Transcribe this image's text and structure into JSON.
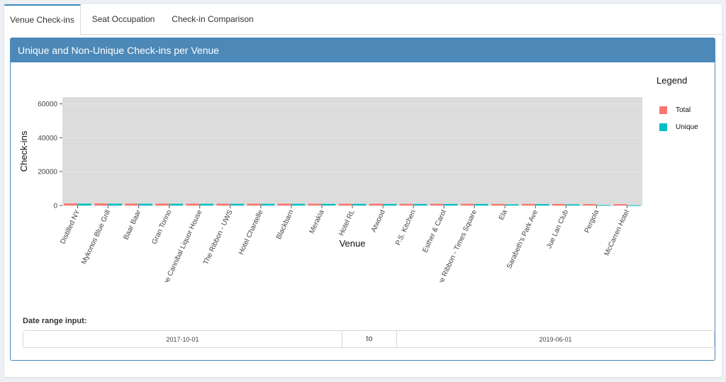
{
  "tabs": [
    {
      "label": "Venue Check-ins",
      "active": true
    },
    {
      "label": "Seat Occupation",
      "active": false
    },
    {
      "label": "Check-in Comparison",
      "active": false
    }
  ],
  "box": {
    "title": "Unique and Non-Unique Check-ins per Venue"
  },
  "legend": {
    "title": "Legend",
    "items": [
      {
        "label": "Total",
        "color": "#f8766d"
      },
      {
        "label": "Unique",
        "color": "#00bfc4"
      }
    ]
  },
  "chart_data": {
    "type": "bar",
    "xlabel": "Venue",
    "ylabel": "Check-ins",
    "ylim": [
      0,
      64000
    ],
    "yticks": [
      0,
      20000,
      40000,
      60000
    ],
    "ytick_labels": [
      "0",
      "20000",
      "40000",
      "60000"
    ],
    "grid": true,
    "legend_position": "right",
    "categories": [
      "Distilled NY",
      "Mykonos Blue Grill",
      "Baar Baar",
      "Gran Torino",
      "The Cannibal Liquor House",
      "The Ribbon - UWS",
      "Hotel Chantelle",
      "Blackbarn",
      "Merakia",
      "Hotel RL",
      "Atwood",
      "P.S. Kitchen",
      "Esther & Carol",
      "The Ribbon - Times Square",
      "Ela",
      "Sarabeth's Park Ave",
      "Jue Lan Club",
      "Pergola",
      "McCarren Hotel"
    ],
    "series": [
      {
        "name": "Total",
        "color": "#f8766d",
        "values": [
          1200,
          1200,
          1150,
          1150,
          1100,
          1100,
          1100,
          1100,
          1050,
          1050,
          1050,
          1000,
          1000,
          1000,
          950,
          950,
          900,
          850,
          800
        ]
      },
      {
        "name": "Unique",
        "color": "#00bfc4",
        "values": [
          1100,
          1100,
          1050,
          1050,
          1000,
          1000,
          1000,
          1000,
          950,
          950,
          900,
          900,
          900,
          900,
          700,
          850,
          700,
          300,
          150
        ]
      }
    ]
  },
  "date_range": {
    "label": "Date range input:",
    "start": "2017-10-01",
    "separator": "to",
    "end": "2019-06-01"
  }
}
